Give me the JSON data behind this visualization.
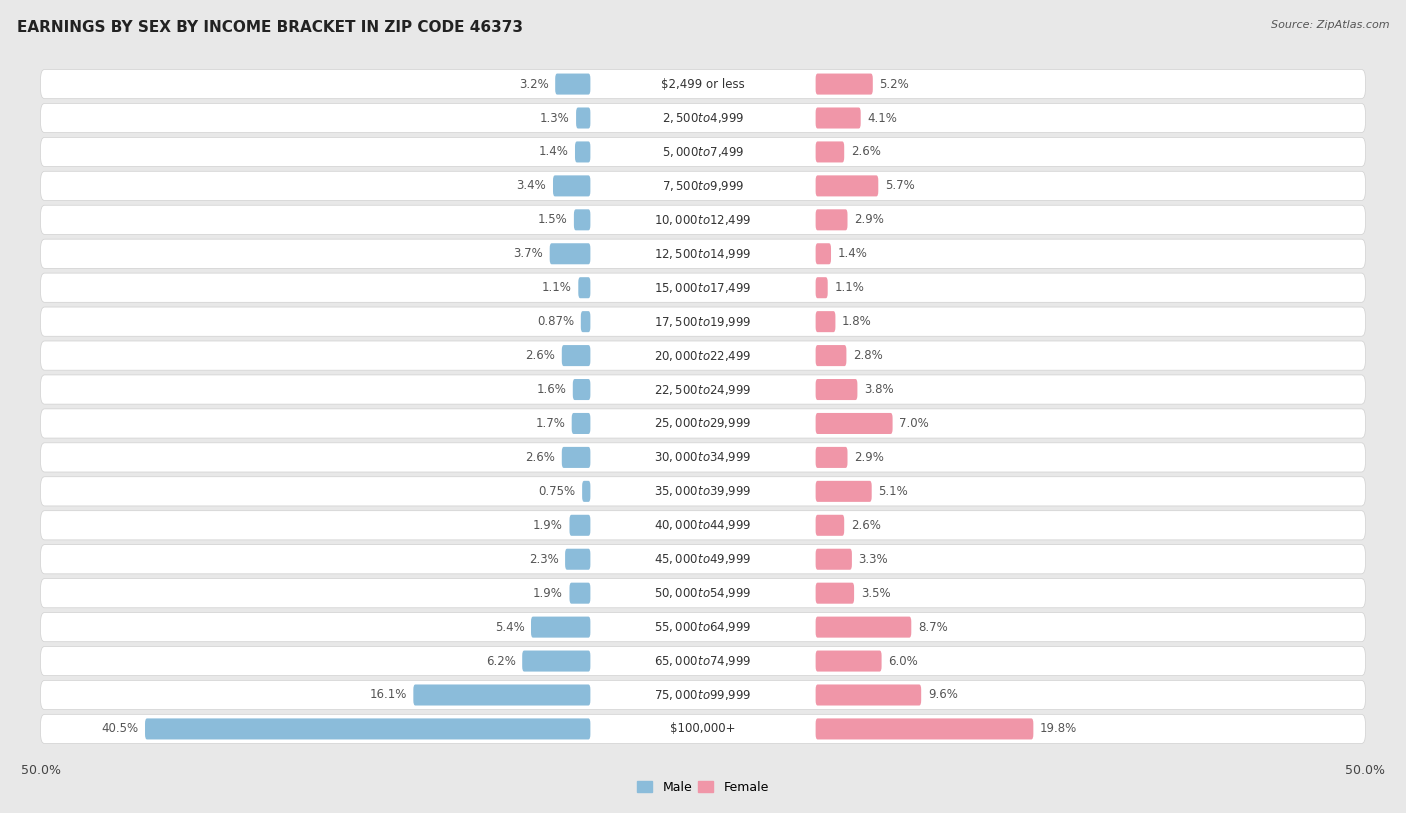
{
  "title": "EARNINGS BY SEX BY INCOME BRACKET IN ZIP CODE 46373",
  "source": "Source: ZipAtlas.com",
  "categories": [
    "$2,499 or less",
    "$2,500 to $4,999",
    "$5,000 to $7,499",
    "$7,500 to $9,999",
    "$10,000 to $12,499",
    "$12,500 to $14,999",
    "$15,000 to $17,499",
    "$17,500 to $19,999",
    "$20,000 to $22,499",
    "$22,500 to $24,999",
    "$25,000 to $29,999",
    "$30,000 to $34,999",
    "$35,000 to $39,999",
    "$40,000 to $44,999",
    "$45,000 to $49,999",
    "$50,000 to $54,999",
    "$55,000 to $64,999",
    "$65,000 to $74,999",
    "$75,000 to $99,999",
    "$100,000+"
  ],
  "male_values": [
    3.2,
    1.3,
    1.4,
    3.4,
    1.5,
    3.7,
    1.1,
    0.87,
    2.6,
    1.6,
    1.7,
    2.6,
    0.75,
    1.9,
    2.3,
    1.9,
    5.4,
    6.2,
    16.1,
    40.5
  ],
  "female_values": [
    5.2,
    4.1,
    2.6,
    5.7,
    2.9,
    1.4,
    1.1,
    1.8,
    2.8,
    3.8,
    7.0,
    2.9,
    5.1,
    2.6,
    3.3,
    3.5,
    8.7,
    6.0,
    9.6,
    19.8
  ],
  "male_color": "#8bbcda",
  "female_color": "#f096a8",
  "axis_max": 50.0,
  "background_color": "#e8e8e8",
  "row_bg_color": "#ffffff",
  "title_fontsize": 11,
  "label_fontsize": 8.5,
  "category_fontsize": 8.5,
  "source_fontsize": 8
}
